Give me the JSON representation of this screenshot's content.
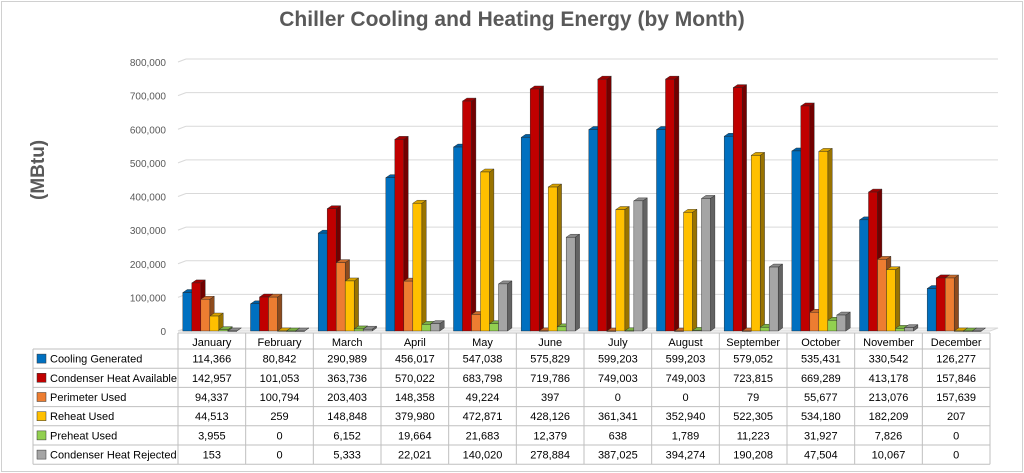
{
  "chart_data": {
    "type": "bar",
    "title": "Chiller Cooling and Heating Energy (by Month)",
    "ylabel": "(MBtu)",
    "xlabel": "",
    "ylim": [
      0,
      800000
    ],
    "yticks": [
      "0",
      "100,000",
      "200,000",
      "300,000",
      "400,000",
      "500,000",
      "600,000",
      "700,000",
      "800,000"
    ],
    "grid": true,
    "legend": "data-table",
    "categories": [
      "January",
      "February",
      "March",
      "April",
      "May",
      "June",
      "July",
      "August",
      "September",
      "October",
      "November",
      "December"
    ],
    "series": [
      {
        "name": "Cooling Generated",
        "color": "#0070C0",
        "values": [
          114366,
          80842,
          290989,
          456017,
          547038,
          575829,
          599203,
          599203,
          579052,
          535431,
          330542,
          126277
        ],
        "labels": [
          "114,366",
          "80,842",
          "290,989",
          "456,017",
          "547,038",
          "575,829",
          "599,203",
          "599,203",
          "579,052",
          "535,431",
          "330,542",
          "126,277"
        ]
      },
      {
        "name": "Condenser Heat Available",
        "color": "#C00000",
        "values": [
          142957,
          101053,
          363736,
          570022,
          683798,
          719786,
          749003,
          749003,
          723815,
          669289,
          413178,
          157846
        ],
        "labels": [
          "142,957",
          "101,053",
          "363,736",
          "570,022",
          "683,798",
          "719,786",
          "749,003",
          "749,003",
          "723,815",
          "669,289",
          "413,178",
          "157,846"
        ]
      },
      {
        "name": "Perimeter Used",
        "color": "#ED7D31",
        "values": [
          94337,
          100794,
          203403,
          148358,
          49224,
          397,
          0,
          0,
          79,
          55677,
          213076,
          157639
        ],
        "labels": [
          "94,337",
          "100,794",
          "203,403",
          "148,358",
          "49,224",
          "397",
          "0",
          "0",
          "79",
          "55,677",
          "213,076",
          "157,639"
        ]
      },
      {
        "name": "Reheat Used",
        "color": "#FFC000",
        "values": [
          44513,
          259,
          148848,
          379980,
          472871,
          428126,
          361341,
          352940,
          522305,
          534180,
          182209,
          207
        ],
        "labels": [
          "44,513",
          "259",
          "148,848",
          "379,980",
          "472,871",
          "428,126",
          "361,341",
          "352,940",
          "522,305",
          "534,180",
          "182,209",
          "207"
        ]
      },
      {
        "name": "Preheat Used",
        "color": "#92D050",
        "values": [
          3955,
          0,
          6152,
          19664,
          21683,
          12379,
          638,
          1789,
          11223,
          31927,
          7826,
          0
        ],
        "labels": [
          "3,955",
          "0",
          "6,152",
          "19,664",
          "21,683",
          "12,379",
          "638",
          "1,789",
          "11,223",
          "31,927",
          "7,826",
          "0"
        ]
      },
      {
        "name": "Condenser Heat Rejected",
        "color": "#A5A5A5",
        "values": [
          153,
          0,
          5333,
          22021,
          140020,
          278884,
          387025,
          394274,
          190208,
          47504,
          10067,
          0
        ],
        "labels": [
          "153",
          "0",
          "5,333",
          "22,021",
          "140,020",
          "278,884",
          "387,025",
          "394,274",
          "190,208",
          "47,504",
          "10,067",
          "0"
        ]
      }
    ]
  }
}
